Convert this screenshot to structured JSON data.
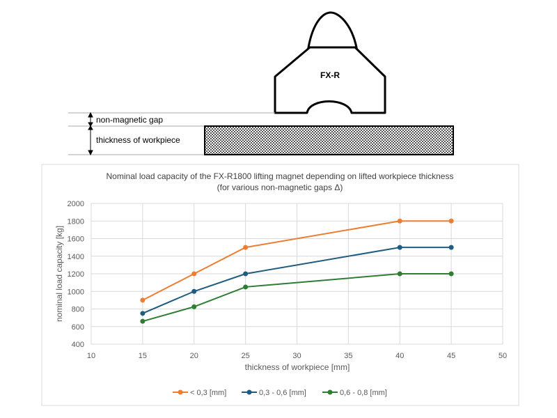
{
  "diagram": {
    "magnet_label": "FX-R",
    "gap_label": "non-magnetic gap",
    "thickness_label": "thickness of workpiece"
  },
  "chart_data": {
    "type": "line",
    "title": "Nominal load capacity of the FX-R1800 lifting magnet depending on lifted workpiece thickness",
    "subtitle": "(for various non-magnetic gaps Δ)",
    "xlabel": "thickness of workpiece [mm]",
    "ylabel": "nominal load capacity [kg]",
    "xlim": [
      10,
      50
    ],
    "ylim": [
      400,
      2000
    ],
    "xticks": [
      10,
      15,
      20,
      25,
      30,
      35,
      40,
      45,
      50
    ],
    "yticks": [
      400,
      600,
      800,
      1000,
      1200,
      1400,
      1600,
      1800,
      2000
    ],
    "grid": true,
    "legend_position": "bottom",
    "x": [
      15,
      20,
      25,
      40,
      45
    ],
    "series": [
      {
        "name": "< 0,3 [mm]",
        "color": "#ED7D31",
        "values": [
          900,
          1200,
          1500,
          1800,
          1800
        ]
      },
      {
        "name": "0,3 - 0,6 [mm]",
        "color": "#1F5C7F",
        "values": [
          750,
          1000,
          1200,
          1500,
          1500
        ]
      },
      {
        "name": "0,6 - 0,8 [mm]",
        "color": "#2E7D32",
        "values": [
          660,
          825,
          1050,
          1200,
          1200
        ]
      }
    ]
  }
}
